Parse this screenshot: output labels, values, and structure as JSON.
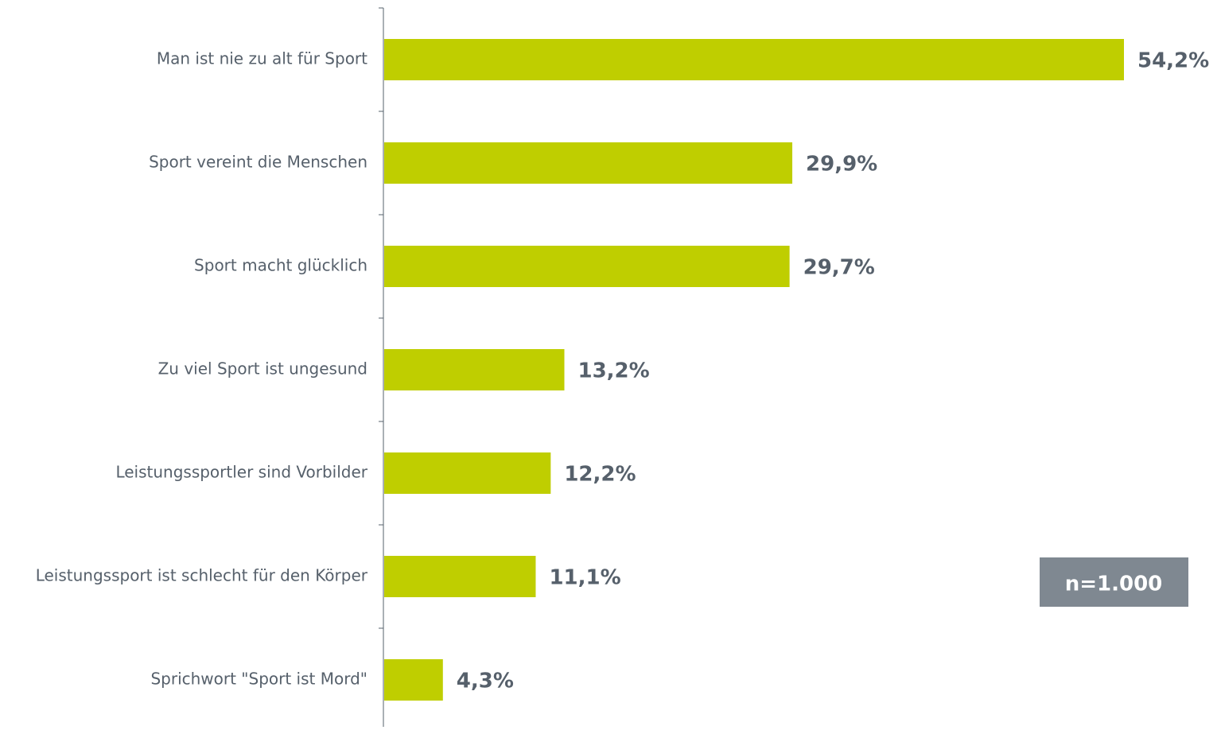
{
  "chart_data": {
    "type": "bar",
    "orientation": "horizontal",
    "categories": [
      "Man ist nie zu alt für Sport",
      "Sport vereint die Menschen",
      "Sport macht glücklich",
      "Zu viel Sport ist ungesund",
      "Leistungssportler sind Vorbilder",
      "Leistungssport ist schlecht für den Körper",
      "Sprichwort \"Sport ist Mord\""
    ],
    "values": [
      54.2,
      29.9,
      29.7,
      13.2,
      12.2,
      11.1,
      4.3
    ],
    "value_labels": [
      "54,2%",
      "29,9%",
      "29,7%",
      "13,2%",
      "12,2%",
      "11,1%",
      "4,3%"
    ],
    "color": "#bfce00",
    "annotation": "n=1.000"
  }
}
